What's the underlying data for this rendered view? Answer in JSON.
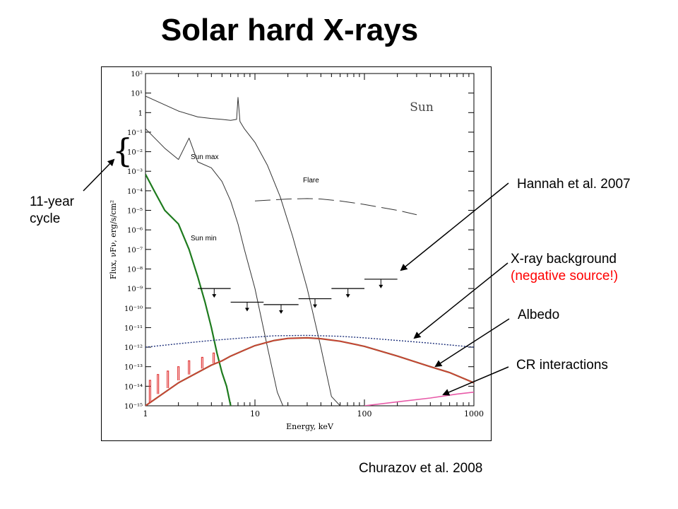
{
  "slide": {
    "title": "Solar hard X-rays",
    "citation": "Churazov et al. 2008"
  },
  "annotations": {
    "cycle_label_1": "11-year",
    "cycle_label_2": "cycle",
    "hannah": "Hannah et al. 2007",
    "xrb_1": "X-ray background",
    "xrb_2": "(negative source!)",
    "albedo": "Albedo",
    "cr": "CR interactions"
  },
  "colors": {
    "sun_min_highlight": "#1e7b1e",
    "albedo": "#a0522d",
    "albedo_overlay": "#e23b3b",
    "cr_interactions": "#e85aa8",
    "xrb": "#1c2f7a",
    "negative_source_text": "#ff0000",
    "arrow": "#000000"
  },
  "chart_data": {
    "type": "line",
    "panel_label": "Sun",
    "xlabel": "Energy, keV",
    "ylabel": "Flux, νFν, erg/s/cm²",
    "xscale": "log",
    "yscale": "log",
    "xlim": [
      1,
      1000
    ],
    "ylim": [
      1e-15,
      100
    ],
    "x_ticks": [
      1,
      10,
      100,
      1000
    ],
    "x_tick_labels": [
      "1",
      "10",
      "100",
      "1000"
    ],
    "y_ticks": [
      100,
      10,
      1,
      0.1,
      0.01,
      0.001,
      0.0001,
      1e-05,
      1e-06,
      1e-07,
      1e-08,
      1e-09,
      1e-10,
      1e-11,
      1e-12,
      1e-13,
      1e-14,
      1e-15
    ],
    "y_tick_labels": [
      "10²",
      "10¹",
      "1",
      "10⁻¹",
      "10⁻²",
      "10⁻³",
      "10⁻⁴",
      "10⁻⁵",
      "10⁻⁶",
      "10⁻⁷",
      "10⁻⁸",
      "10⁻⁹",
      "10⁻¹⁰",
      "10⁻¹¹",
      "10⁻¹²",
      "10⁻¹³",
      "10⁻¹⁴",
      "10⁻¹⁵"
    ],
    "grid": false,
    "series": [
      {
        "name": "",
        "style": "solid-black",
        "x": [
          1,
          1.5,
          2,
          3,
          4,
          5,
          6,
          6.8,
          7,
          7.3,
          8,
          10,
          13,
          17,
          22,
          30,
          40,
          50,
          60
        ],
        "y": [
          7,
          2.5,
          1.2,
          0.6,
          0.5,
          0.45,
          0.4,
          0.45,
          6,
          0.35,
          0.15,
          0.03,
          0.002,
          5e-05,
          5e-07,
          1e-09,
          1e-12,
          3e-15,
          1e-15
        ]
      },
      {
        "name": "Sun max",
        "style": "solid-black",
        "x": [
          1,
          1.5,
          2,
          2.5,
          3,
          4,
          5,
          6,
          7,
          8,
          10,
          13,
          16,
          18
        ],
        "y": [
          0.15,
          0.015,
          0.004,
          0.05,
          0.003,
          0.0015,
          0.0003,
          3e-05,
          2e-06,
          1e-07,
          1e-09,
          1e-12,
          5e-15,
          1e-15
        ]
      },
      {
        "name": "Sun min",
        "style": "solid-green",
        "x": [
          1,
          1.2,
          1.5,
          2,
          2.5,
          3,
          3.5,
          4,
          4.5,
          5,
          5.5,
          6
        ],
        "y": [
          0.0007,
          0.0001,
          1e-05,
          2e-06,
          1e-07,
          4e-09,
          2e-10,
          1e-11,
          5e-13,
          5e-14,
          1e-14,
          1e-15
        ]
      },
      {
        "name": "Flare",
        "style": "dashed-black",
        "x": [
          10,
          20,
          30,
          40,
          60,
          100,
          200,
          300
        ],
        "y": [
          3e-05,
          3.8e-05,
          4e-05,
          3.8e-05,
          3e-05,
          2e-05,
          1e-05,
          6e-06
        ]
      },
      {
        "name": "",
        "style": "dotted-blue",
        "x": [
          1,
          2,
          4,
          8,
          15,
          30,
          60,
          100,
          200,
          400,
          1000
        ],
        "y": [
          1e-12,
          1.5e-12,
          2.2e-12,
          3e-12,
          3.8e-12,
          4e-12,
          3.6e-12,
          3e-12,
          2.2e-12,
          1.6e-12,
          1e-12
        ]
      },
      {
        "name": "",
        "style": "solid-brown",
        "x": [
          1,
          2,
          4,
          5,
          6,
          8,
          10,
          15,
          20,
          30,
          40,
          60,
          100,
          200,
          400,
          600,
          1000
        ],
        "y": [
          1e-15,
          1.5e-14,
          1.2e-13,
          2e-13,
          3.5e-13,
          7e-13,
          1.2e-12,
          2.2e-12,
          2.8e-12,
          3e-12,
          2.7e-12,
          2e-12,
          1.1e-12,
          3.5e-13,
          1e-13,
          5e-14,
          1.5e-14
        ]
      },
      {
        "name": "",
        "style": "solid-pink",
        "x": [
          100,
          200,
          400,
          700,
          1000
        ],
        "y": [
          1e-15,
          1.6e-15,
          2.5e-15,
          4e-15,
          5e-15
        ]
      }
    ],
    "upper_limits": [
      {
        "x_low": 3,
        "x_high": 6,
        "y": 1e-09
      },
      {
        "x_low": 6,
        "x_high": 12,
        "y": 2e-10
      },
      {
        "x_low": 12,
        "x_high": 25,
        "y": 1.5e-10
      },
      {
        "x_low": 25,
        "x_high": 50,
        "y": 3e-10
      },
      {
        "x_low": 50,
        "x_high": 100,
        "y": 1e-09
      },
      {
        "x_low": 100,
        "x_high": 200,
        "y": 3e-09
      }
    ],
    "spikes": {
      "x": [
        1.1,
        1.3,
        1.6,
        2,
        2.5,
        3.3,
        4.2
      ],
      "base_y": [
        1.5e-15,
        4e-15,
        8e-15,
        2e-14,
        4e-14,
        8e-14,
        1.5e-13
      ],
      "peak_y": [
        2e-14,
        4e-14,
        6e-14,
        1e-13,
        2e-13,
        3e-13,
        5e-13
      ]
    }
  }
}
